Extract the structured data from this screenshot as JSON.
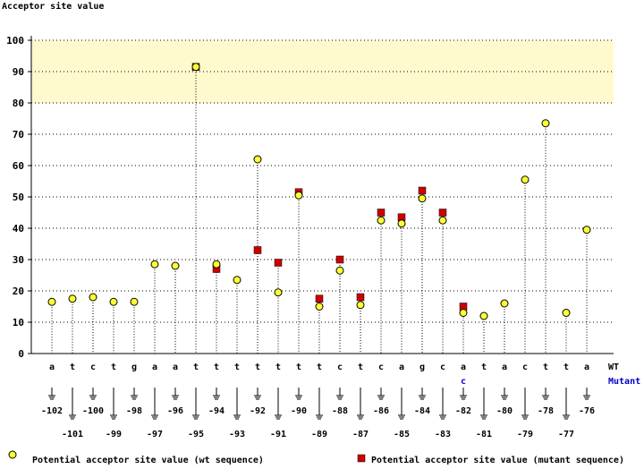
{
  "chart_data": {
    "type": "scatter",
    "ylabel": "Acceptor site value",
    "ylim": [
      0,
      100
    ],
    "yticks": [
      0,
      10,
      20,
      30,
      40,
      50,
      60,
      70,
      80,
      90,
      100
    ],
    "highlight_band": [
      80,
      100
    ],
    "grid": true,
    "row_labels": {
      "wt": "WT",
      "mutant": "Mutant"
    },
    "positions": [
      -102,
      -101,
      -100,
      -99,
      -98,
      -97,
      -96,
      -95,
      -94,
      -93,
      -92,
      -91,
      -90,
      -89,
      -88,
      -87,
      -86,
      -85,
      -84,
      -83,
      -82,
      -81,
      -80,
      -79,
      -78,
      -77,
      -76
    ],
    "wt_bases": [
      "a",
      "t",
      "c",
      "t",
      "g",
      "a",
      "a",
      "t",
      "t",
      "t",
      "t",
      "t",
      "t",
      "t",
      "c",
      "t",
      "c",
      "a",
      "g",
      "c",
      "a",
      "t",
      "a",
      "c",
      "t",
      "t",
      "a"
    ],
    "mutant_bases": [
      "",
      "",
      "",
      "",
      "",
      "",
      "",
      "",
      "",
      "",
      "",
      "",
      "",
      "",
      "",
      "",
      "",
      "",
      "",
      "",
      "c",
      "",
      "",
      "",
      "",
      "",
      ""
    ],
    "series": [
      {
        "name": "Potential acceptor site value (wt sequence)",
        "marker": "circle",
        "color": "#ffff33",
        "values": [
          16.5,
          17.5,
          18,
          16.5,
          16.5,
          28.5,
          28,
          91.5,
          28.5,
          23.5,
          62,
          19.5,
          50.5,
          15,
          26.5,
          15.5,
          42.5,
          41.5,
          49.5,
          42.5,
          13,
          12,
          16,
          55.5,
          73.5,
          13,
          39.5
        ]
      },
      {
        "name": "Potential acceptor site value (mutant sequence)",
        "marker": "square",
        "color": "#cc0000",
        "values": [
          null,
          null,
          null,
          null,
          null,
          null,
          null,
          91.5,
          27,
          null,
          33,
          29,
          51.5,
          17.5,
          30,
          18,
          45,
          43.5,
          52,
          45,
          15,
          null,
          null,
          null,
          null,
          null,
          null
        ]
      }
    ],
    "legend_position": "bottom"
  },
  "colors": {
    "band": "#fffacd",
    "grid": "#000000",
    "mutant_text": "#0000cc"
  }
}
